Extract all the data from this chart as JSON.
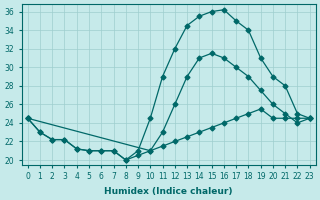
{
  "xlabel": "Humidex (Indice chaleur)",
  "xlim_min": -0.5,
  "xlim_max": 23.5,
  "ylim_min": 19.5,
  "ylim_max": 36.8,
  "yticks": [
    20,
    22,
    24,
    26,
    28,
    30,
    32,
    34,
    36
  ],
  "xticks": [
    0,
    1,
    2,
    3,
    4,
    5,
    6,
    7,
    8,
    9,
    10,
    11,
    12,
    13,
    14,
    15,
    16,
    17,
    18,
    19,
    20,
    21,
    22,
    23
  ],
  "bg_color": "#c6eaea",
  "grid_color": "#9ecece",
  "line_color": "#006868",
  "curve1_x": [
    0,
    1,
    2,
    3,
    4,
    5,
    6,
    7,
    8,
    9,
    10,
    11,
    12,
    13,
    14,
    15,
    16,
    17,
    18,
    19,
    20,
    21,
    22,
    23
  ],
  "curve1_y": [
    24.5,
    23.0,
    22.2,
    22.2,
    21.2,
    21.0,
    21.0,
    21.0,
    20.0,
    21.0,
    24.5,
    29.0,
    32.0,
    34.5,
    35.5,
    36.0,
    36.2,
    35.0,
    34.0,
    31.0,
    29.0,
    28.0,
    25.0,
    24.5
  ],
  "curve2_x": [
    0,
    1,
    2,
    3,
    4,
    5,
    6,
    7,
    8,
    9,
    10,
    11,
    12,
    13,
    14,
    15,
    16,
    17,
    18,
    19,
    20,
    21,
    22,
    23
  ],
  "curve2_y": [
    24.5,
    23.0,
    22.2,
    22.2,
    21.2,
    21.0,
    21.0,
    21.0,
    20.0,
    20.5,
    21.0,
    21.5,
    22.0,
    22.5,
    23.0,
    23.5,
    24.0,
    24.5,
    25.0,
    25.5,
    24.5,
    24.5,
    24.5,
    24.5
  ],
  "curve3_x": [
    0,
    10,
    11,
    12,
    13,
    14,
    15,
    16,
    17,
    18,
    19,
    20,
    21,
    22,
    23
  ],
  "curve3_y": [
    24.5,
    21.0,
    23.0,
    26.0,
    29.0,
    31.0,
    31.5,
    31.0,
    30.0,
    29.0,
    27.5,
    26.0,
    25.0,
    24.0,
    24.5
  ]
}
